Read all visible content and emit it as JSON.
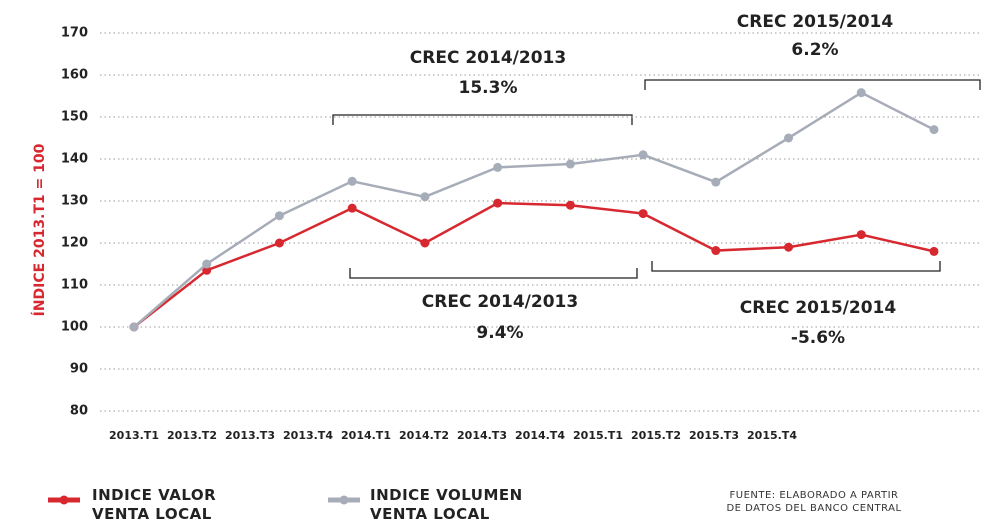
{
  "chart_data": {
    "type": "line",
    "y_label": "ÍNDICE 2013.T1 = 100",
    "categories": [
      "2013.T1",
      "2013.T2",
      "2013.T3",
      "2013.T4",
      "2014.T1",
      "2014.T2",
      "2014.T3",
      "2014.T4",
      "2015.T1",
      "2015.T2",
      "2015.T3",
      "2015.T4"
    ],
    "series": [
      {
        "name": "INDICE VALOR VENTA LOCAL",
        "color": "#d7282f",
        "values": [
          100,
          113.5,
          120,
          128.3,
          120,
          129.5,
          129,
          127,
          118.2,
          119,
          122,
          118
        ]
      },
      {
        "name": "INDICE VOLUMEN VENTA LOCAL",
        "color": "#a7adb8",
        "values": [
          100,
          115,
          126.5,
          134.7,
          131,
          138,
          138.8,
          141,
          134.5,
          145,
          155.8,
          147
        ]
      }
    ],
    "ylim": [
      80,
      170
    ],
    "yticks": [
      80,
      90,
      100,
      110,
      120,
      130,
      140,
      150,
      160,
      170
    ],
    "grid": true,
    "annotations": [
      {
        "label": "CREC 2014/2013",
        "value": "15.3%"
      },
      {
        "label": "CREC 2015/2014",
        "value": "6.2%"
      },
      {
        "label": "CREC 2014/2013",
        "value": "9.4%"
      },
      {
        "label": "CREC 2015/2014",
        "value": "-5.6%"
      }
    ],
    "source": "FUENTE: ELABORADO A PARTIR DE DATOS DEL BANCO CENTRAL"
  }
}
